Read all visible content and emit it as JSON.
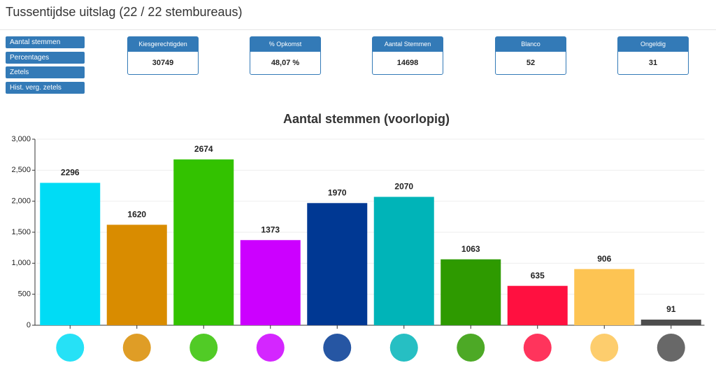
{
  "header": {
    "title": "Tussentijdse uitslag (22 / 22 stembureaus)"
  },
  "buttons": [
    "Aantal stemmen",
    "Percentages",
    "Zetels",
    "Hist. verg. zetels"
  ],
  "stats": [
    {
      "label": "Kiesgerechtigden",
      "value": "30749"
    },
    {
      "label": "% Opkomst",
      "value": "48,07 %"
    },
    {
      "label": "Aantal Stemmen",
      "value": "14698"
    },
    {
      "label": "Blanco",
      "value": "52"
    },
    {
      "label": "Ongeldig",
      "value": "31"
    }
  ],
  "chart_data": {
    "type": "bar",
    "title": "Aantal stemmen (voorlopig)",
    "categories": [
      null,
      null,
      null,
      null,
      null,
      null,
      null,
      null,
      null,
      null
    ],
    "values": [
      2296,
      1620,
      2674,
      1373,
      1970,
      2070,
      1063,
      635,
      906,
      91
    ],
    "colors": [
      "#00dcf5",
      "#d98c00",
      "#33c200",
      "#cc00ff",
      "#003893",
      "#00b4b8",
      "#2e9a00",
      "#ff1040",
      "#fdc453",
      "#4d4d4d"
    ],
    "ylim": [
      0,
      3000
    ],
    "yticks": [
      0,
      500,
      {
        "value": 1000,
        "label": "1,000"
      },
      {
        "value": 1500,
        "label": "1,500"
      },
      {
        "value": 2000,
        "label": "2,000"
      },
      {
        "value": 2500,
        "label": "2,500"
      },
      {
        "value": 3000,
        "label": "3,000"
      }
    ],
    "grid": true
  }
}
